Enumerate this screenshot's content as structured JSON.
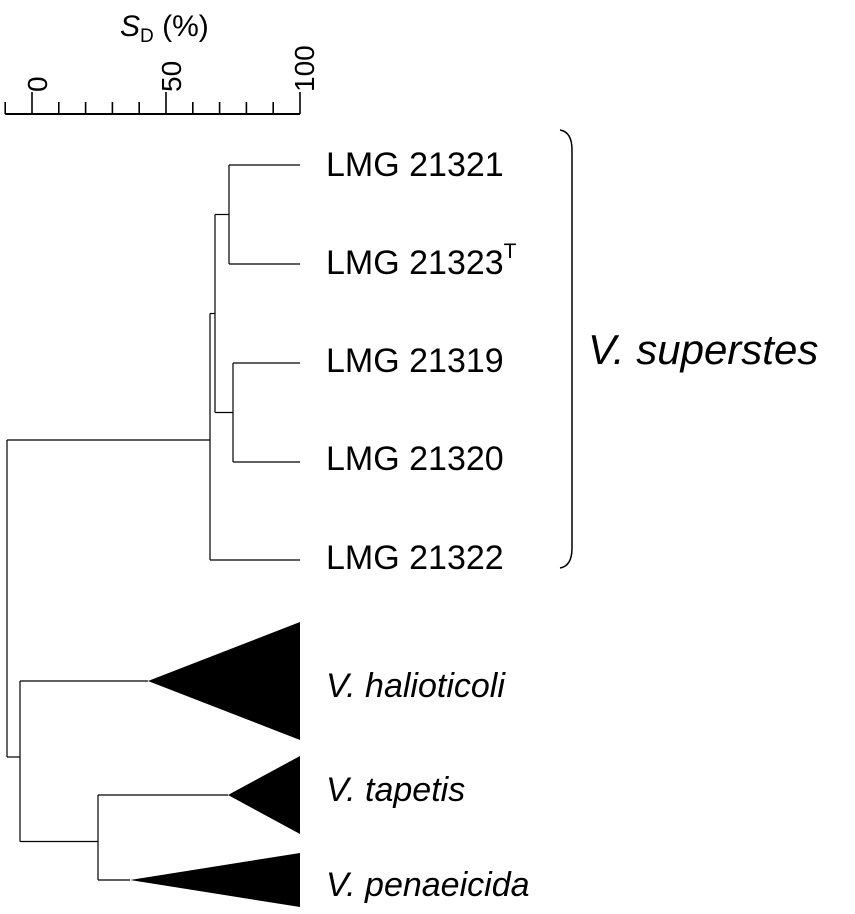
{
  "figure": {
    "axis": {
      "title_symbol": "S",
      "title_subscript": "D",
      "title_unit": "(%)",
      "ticks": [
        "0",
        "50",
        "100"
      ],
      "range": [
        0,
        100
      ],
      "minor_step": 10
    },
    "strains": [
      {
        "name": "LMG 21321",
        "superscript": ""
      },
      {
        "name": "LMG 21323",
        "superscript": "T"
      },
      {
        "name": "LMG 21319",
        "superscript": ""
      },
      {
        "name": "LMG 21320",
        "superscript": ""
      },
      {
        "name": "LMG 21322",
        "superscript": ""
      }
    ],
    "collapsed_clusters": [
      {
        "name": "V. halioticoli"
      },
      {
        "name": "V. tapetis"
      },
      {
        "name": "V. penaeicida"
      }
    ],
    "group_label": "V. superstes",
    "line_color": "#000000",
    "fill_color": "#000000"
  }
}
